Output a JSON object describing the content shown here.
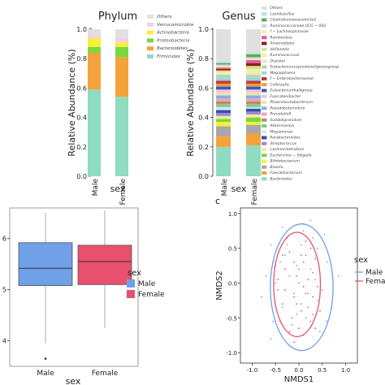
{
  "chart_data": [
    {
      "panel": "phylum",
      "type": "bar",
      "stacked": true,
      "title": "Phylum",
      "xlabel": "sex",
      "ylabel": "Relative Abundance (%)",
      "ylim": [
        0,
        1
      ],
      "yticks": [
        "0.0",
        "0.2",
        "0.4",
        "0.6",
        "0.8",
        "1.0"
      ],
      "categories": [
        "Male",
        "Female"
      ],
      "legend": [
        "Others",
        "Verrucomicrobia",
        "Actinobacteria",
        "Proteobacteria",
        "Bacteroidetes",
        "Firmicutes"
      ],
      "series": [
        {
          "name": "Firmicutes",
          "color": "#8fdcc0",
          "values": [
            0.59,
            0.54
          ]
        },
        {
          "name": "Bacteroidetes",
          "color": "#f5a23a",
          "values": [
            0.25,
            0.27
          ]
        },
        {
          "name": "Proteobacteria",
          "color": "#7ad93e",
          "values": [
            0.04,
            0.07
          ]
        },
        {
          "name": "Actinobacteria",
          "color": "#f2f23a",
          "values": [
            0.06,
            0.03
          ]
        },
        {
          "name": "Verrucomicrobia",
          "color": "#f7cde8",
          "values": [
            0.02,
            0.03
          ]
        },
        {
          "name": "Others",
          "color": "#e0e0e0",
          "values": [
            0.04,
            0.06
          ]
        }
      ]
    },
    {
      "panel": "genus",
      "type": "bar",
      "stacked": true,
      "title": "Genus",
      "xlabel": "sex",
      "ylabel": "Relative Abundance (%)",
      "ylim": [
        0,
        1
      ],
      "yticks": [
        "0.0",
        "0.2",
        "0.4",
        "0.6",
        "0.8",
        "1.0"
      ],
      "categories": [
        "Male",
        "Female"
      ],
      "legend": [
        "Others",
        "Lactobacillus",
        "Clostridiumsensustricto1",
        "Ruminococcaceae UCG − 002",
        "f − Lachnospiraceae",
        "Romboutsia",
        "Anaerostipes",
        "Veillonella",
        "Ruminococcus2",
        "Dialister",
        "Eubacteriumcoprostanoligenesgroup",
        "Megasphaera",
        "f − Enterobacteriaceae",
        "Collinsella",
        "Eubacteriumhalligroup",
        "Fusicatenibacter",
        "Phascolarctobacterium",
        "Pseudobutyrivibrio",
        "Prevotella9",
        "Subdoligranulum",
        "Akkermansia",
        "Megamonas",
        "Parabacteroides",
        "Streptococcus",
        "Lachnoclostridium",
        "Escherichia − Shigella",
        "Bifidobacterium",
        "Blautia",
        "Faecalibacterium",
        "Bacteroides"
      ],
      "series": [
        {
          "name": "Bacteroides",
          "color": "#8fdcc0",
          "values": [
            0.2,
            0.21
          ]
        },
        {
          "name": "Faecalibacterium",
          "color": "#f5a23a",
          "values": [
            0.07,
            0.08
          ]
        },
        {
          "name": "Blautia",
          "color": "#a8a8a8",
          "values": [
            0.07,
            0.06
          ]
        },
        {
          "name": "Bifidobacterium",
          "color": "#f2f23a",
          "values": [
            0.03,
            0.02
          ]
        },
        {
          "name": "Escherichia − Shigella",
          "color": "#7ad93e",
          "values": [
            0.02,
            0.03
          ]
        },
        {
          "name": "Lachnoclostridium",
          "color": "#ffe9a0",
          "values": [
            0.02,
            0.02
          ]
        },
        {
          "name": "Streptococcus",
          "color": "#9b8bd0",
          "values": [
            0.02,
            0.02
          ]
        },
        {
          "name": "Parabacteroides",
          "color": "#2f4fb0",
          "values": [
            0.02,
            0.02
          ]
        },
        {
          "name": "Megamonas",
          "color": "#d3e8f3",
          "values": [
            0.02,
            0.01
          ]
        },
        {
          "name": "Akkermansia",
          "color": "#8bc98b",
          "values": [
            0.02,
            0.02
          ]
        },
        {
          "name": "Subdoligranulum",
          "color": "#b58e6b",
          "values": [
            0.02,
            0.02
          ]
        },
        {
          "name": "Prevotella9",
          "color": "#f5a0b8",
          "values": [
            0.02,
            0.02
          ]
        },
        {
          "name": "Pseudobutyrivibrio",
          "color": "#7ab3e6",
          "values": [
            0.02,
            0.02
          ]
        },
        {
          "name": "Phascolarctobacterium",
          "color": "#f0e2a8",
          "values": [
            0.02,
            0.02
          ]
        },
        {
          "name": "Fusicatenibacter",
          "color": "#e8c4e8",
          "values": [
            0.02,
            0.02
          ]
        },
        {
          "name": "Eubacteriumhalligroup",
          "color": "#3b5bb0",
          "values": [
            0.02,
            0.02
          ]
        },
        {
          "name": "Collinsella",
          "color": "#f09a3c",
          "values": [
            0.02,
            0.02
          ]
        },
        {
          "name": "f − Enterobacteriaceae",
          "color": "#c23b3b",
          "values": [
            0.02,
            0.02
          ]
        },
        {
          "name": "Megasphaera",
          "color": "#9ad3e8",
          "values": [
            0.02,
            0.02
          ]
        },
        {
          "name": "Eubacteriumcoprostanoligenesgroup",
          "color": "#b7d6a0",
          "values": [
            0.02,
            0.02
          ]
        },
        {
          "name": "Dialister",
          "color": "#e8e8c8",
          "values": [
            0.01,
            0.02
          ]
        },
        {
          "name": "Ruminococcus2",
          "color": "#f7f0a0",
          "values": [
            0.01,
            0.02
          ]
        },
        {
          "name": "Veillonella",
          "color": "#c9e88a",
          "values": [
            0.01,
            0.02
          ]
        },
        {
          "name": "Anaerostipes",
          "color": "#8a1f1f",
          "values": [
            0.01,
            0.02
          ]
        },
        {
          "name": "Romboutsia",
          "color": "#e85aa0",
          "values": [
            0.01,
            0.02
          ]
        },
        {
          "name": "f − Lachnospiraceae",
          "color": "#f2f2a8",
          "values": [
            0.01,
            0.01
          ]
        },
        {
          "name": "Ruminococcaceae UCG − 002",
          "color": "#d0d0f0",
          "values": [
            0.01,
            0.01
          ]
        },
        {
          "name": "Clostridiumsensustricto1",
          "color": "#5ab04a",
          "values": [
            0.01,
            0.02
          ]
        },
        {
          "name": "Lactobacillus",
          "color": "#b8e0f0",
          "values": [
            0.01,
            0.01
          ]
        },
        {
          "name": "Others",
          "color": "#e0e0e0",
          "values": [
            0.22,
            0.16
          ]
        }
      ]
    },
    {
      "panel": "boxplot",
      "type": "box",
      "xlabel": "sex",
      "ylabel": "",
      "ylim": [
        3.5,
        6.6
      ],
      "yticks": [
        "4",
        "5",
        "6"
      ],
      "categories": [
        "Male",
        "Female"
      ],
      "legend_title": "sex",
      "legend": [
        "Male",
        "Female"
      ],
      "series": [
        {
          "name": "Male",
          "color": "#6fa0e8",
          "min": 3.95,
          "q1": 5.08,
          "median": 5.42,
          "q3": 5.92,
          "max": 6.5,
          "outliers": [
            3.65
          ]
        },
        {
          "name": "Female",
          "color": "#e8506e",
          "min": 4.25,
          "q1": 5.1,
          "median": 5.55,
          "q3": 5.87,
          "max": 6.55,
          "outliers": []
        }
      ]
    },
    {
      "panel": "nmds",
      "type": "scatter",
      "panel_label": "c",
      "xlabel": "NMDS1",
      "ylabel": "NMDS2",
      "xlim": [
        -1.25,
        1.25
      ],
      "ylim": [
        -1.15,
        1.08
      ],
      "xticks": [
        "-1.0",
        "-0.5",
        "0.0",
        "0.5",
        "1.0"
      ],
      "yticks": [
        "1.0",
        "0.5",
        "0.0",
        "-0.5",
        "-1.0"
      ],
      "legend_title": "sex",
      "legend": [
        "Male",
        "Fema"
      ],
      "series": [
        {
          "name": "Male",
          "color": "#6fa0e8",
          "ellipse": {
            "cx": 0.06,
            "cy": -0.06,
            "rx": 0.67,
            "ry": 0.91
          },
          "points": [
            [
              -0.6,
              0.55
            ],
            [
              -0.3,
              0.4
            ],
            [
              0.1,
              0.75
            ],
            [
              0.4,
              0.5
            ],
            [
              -0.2,
              0.1
            ],
            [
              0.25,
              0.2
            ],
            [
              -0.45,
              -0.1
            ],
            [
              0.05,
              -0.3
            ],
            [
              0.3,
              -0.45
            ],
            [
              -0.15,
              -0.6
            ],
            [
              0.5,
              -0.1
            ],
            [
              -0.7,
              0.1
            ],
            [
              0.15,
              0.4
            ],
            [
              -0.35,
              -0.35
            ],
            [
              0.6,
              0.3
            ],
            [
              -0.05,
              0.25
            ],
            [
              0.2,
              -0.15
            ],
            [
              -0.25,
              0.55
            ],
            [
              0.45,
              -0.7
            ],
            [
              -0.55,
              -0.55
            ],
            [
              0.0,
              0.0
            ],
            [
              0.35,
              0.05
            ],
            [
              -0.1,
              -0.15
            ],
            [
              0.1,
              -0.75
            ],
            [
              -0.4,
              0.3
            ],
            [
              0.55,
              0.7
            ],
            [
              0.7,
              -0.35
            ],
            [
              -0.8,
              -0.2
            ],
            [
              0.25,
              0.9
            ],
            [
              -0.2,
              -0.9
            ],
            [
              0.05,
              0.55
            ],
            [
              -0.6,
              -0.8
            ],
            [
              0.85,
              0.1
            ],
            [
              -0.35,
              0.8
            ],
            [
              0.15,
              -0.5
            ],
            [
              0.4,
              -0.25
            ],
            [
              -0.05,
              -0.45
            ],
            [
              0.6,
              -0.55
            ],
            [
              -0.5,
              0.0
            ],
            [
              0.3,
              0.65
            ]
          ]
        },
        {
          "name": "Female",
          "color": "#e8506e",
          "ellipse": {
            "cx": -0.04,
            "cy": -0.02,
            "rx": 0.5,
            "ry": 0.75
          },
          "points": [
            [
              -0.3,
              0.2
            ],
            [
              0.1,
              0.3
            ],
            [
              -0.1,
              -0.2
            ],
            [
              0.2,
              0.05
            ],
            [
              -0.2,
              0.45
            ],
            [
              0.05,
              -0.4
            ],
            [
              0.3,
              -0.2
            ],
            [
              -0.35,
              -0.3
            ],
            [
              0.15,
              0.6
            ],
            [
              -0.05,
              0.1
            ],
            [
              0.25,
              -0.55
            ],
            [
              -0.45,
              0.05
            ],
            [
              0.0,
              -0.65
            ],
            [
              0.35,
              0.35
            ],
            [
              -0.15,
              -0.5
            ],
            [
              0.1,
              -0.05
            ],
            [
              -0.25,
              0.65
            ],
            [
              0.4,
              -0.05
            ],
            [
              -0.4,
              -0.55
            ],
            [
              0.05,
              0.4
            ],
            [
              0.2,
              -0.35
            ],
            [
              -0.1,
              0.3
            ],
            [
              0.3,
              0.15
            ],
            [
              -0.3,
              -0.1
            ],
            [
              0.0,
              0.2
            ],
            [
              -0.2,
              -0.7
            ],
            [
              0.15,
              -0.15
            ],
            [
              -0.05,
              -0.3
            ],
            [
              0.25,
              0.5
            ],
            [
              -0.35,
              0.4
            ],
            [
              0.45,
              -0.4
            ],
            [
              -0.5,
              0.25
            ],
            [
              0.1,
              0.85
            ],
            [
              -0.1,
              -0.85
            ],
            [
              0.35,
              -0.65
            ]
          ]
        }
      ]
    }
  ]
}
